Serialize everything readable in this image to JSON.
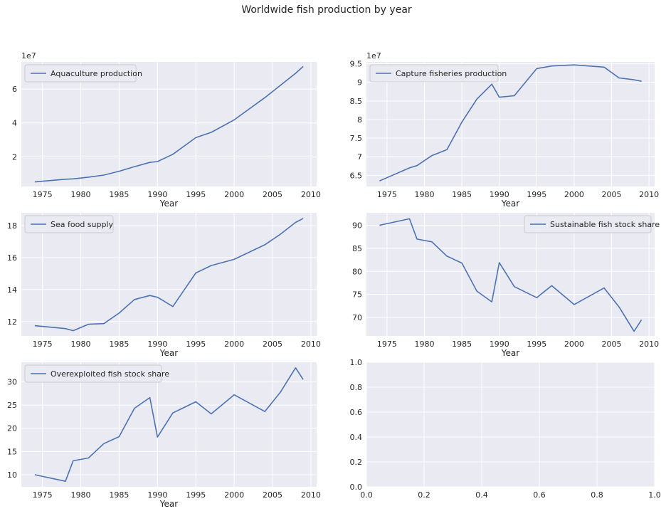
{
  "figure": {
    "suptitle": "Worldwide fish production by year"
  },
  "colors": {
    "axes_bg": "#eaeaf2",
    "grid": "#ffffff",
    "line": "#4c72b0",
    "text": "#262626",
    "legend_bg": "#eaeaf2",
    "legend_border": "#cccccc"
  },
  "chart_data": [
    {
      "type": "line",
      "xlabel": "Year",
      "ylabel": "",
      "offset_label": "1e7",
      "x_ticks": [
        1975,
        1980,
        1985,
        1990,
        1995,
        2000,
        2005,
        2010
      ],
      "y_ticks": [
        2,
        4,
        6
      ],
      "xlim": [
        1972.25,
        2010.75
      ],
      "ylim": [
        0.25,
        7.6
      ],
      "legend": "upper left",
      "grid": true,
      "series": [
        {
          "name": "Aquaculture production",
          "x": [
            1974,
            1978,
            1979,
            1981,
            1983,
            1985,
            1987,
            1989,
            1990,
            1992,
            1995,
            1997,
            2000,
            2004,
            2006,
            2008,
            2009
          ],
          "y": [
            0.52,
            0.68,
            0.7,
            0.8,
            0.92,
            1.15,
            1.42,
            1.67,
            1.72,
            2.15,
            3.13,
            3.44,
            4.18,
            5.49,
            6.21,
            6.93,
            7.33
          ]
        }
      ]
    },
    {
      "type": "line",
      "xlabel": "Year",
      "ylabel": "",
      "offset_label": "1e7",
      "x_ticks": [
        1975,
        1980,
        1985,
        1990,
        1995,
        2000,
        2005,
        2010
      ],
      "y_ticks": [
        6.5,
        7.0,
        7.5,
        8.0,
        8.5,
        9.0,
        9.5
      ],
      "xlim": [
        1972.25,
        2010.75
      ],
      "ylim": [
        6.2,
        9.55
      ],
      "legend": "upper left",
      "grid": true,
      "series": [
        {
          "name": "Capture fisheries production",
          "x": [
            1974,
            1978,
            1979,
            1981,
            1983,
            1985,
            1987,
            1989,
            1990,
            1992,
            1995,
            1997,
            2000,
            2004,
            2006,
            2008,
            2009
          ],
          "y": [
            6.35,
            6.7,
            6.76,
            7.03,
            7.19,
            7.93,
            8.55,
            8.95,
            8.6,
            8.64,
            9.37,
            9.44,
            9.47,
            9.41,
            9.12,
            9.07,
            9.03
          ]
        }
      ]
    },
    {
      "type": "line",
      "xlabel": "Year",
      "ylabel": "",
      "offset_label": "",
      "x_ticks": [
        1975,
        1980,
        1985,
        1990,
        1995,
        2000,
        2005,
        2010
      ],
      "y_ticks": [
        12,
        14,
        16,
        18
      ],
      "xlim": [
        1972.25,
        2010.75
      ],
      "ylim": [
        11.1,
        18.8
      ],
      "legend": "upper left",
      "grid": true,
      "series": [
        {
          "name": "Sea food supply",
          "x": [
            1974,
            1978,
            1979,
            1981,
            1983,
            1985,
            1987,
            1989,
            1990,
            1992,
            1995,
            1997,
            2000,
            2004,
            2006,
            2008,
            2009
          ],
          "y": [
            11.74,
            11.56,
            11.43,
            11.83,
            11.87,
            12.53,
            13.38,
            13.63,
            13.52,
            12.94,
            15.04,
            15.5,
            15.89,
            16.8,
            17.45,
            18.2,
            18.45
          ]
        }
      ]
    },
    {
      "type": "line",
      "xlabel": "Year",
      "ylabel": "",
      "offset_label": "",
      "x_ticks": [
        1975,
        1980,
        1985,
        1990,
        1995,
        2000,
        2005,
        2010
      ],
      "y_ticks": [
        70,
        75,
        80,
        85,
        90
      ],
      "xlim": [
        1972.25,
        2010.75
      ],
      "ylim": [
        66.0,
        92.7
      ],
      "legend": "upper right",
      "grid": true,
      "series": [
        {
          "name": "Sustainable fish stock share",
          "x": [
            1974,
            1978,
            1979,
            1981,
            1983,
            1985,
            1987,
            1989,
            1990,
            1992,
            1995,
            1997,
            2000,
            2004,
            2006,
            2008,
            2009
          ],
          "y": [
            90.0,
            91.4,
            87.0,
            86.4,
            83.3,
            81.8,
            75.7,
            73.4,
            81.9,
            76.7,
            74.3,
            76.9,
            72.8,
            76.4,
            72.3,
            67.0,
            69.5
          ]
        }
      ]
    },
    {
      "type": "line",
      "xlabel": "Year",
      "ylabel": "",
      "offset_label": "",
      "x_ticks": [
        1975,
        1980,
        1985,
        1990,
        1995,
        2000,
        2005,
        2010
      ],
      "y_ticks": [
        10,
        15,
        20,
        25,
        30
      ],
      "xlim": [
        1972.25,
        2010.75
      ],
      "ylim": [
        7.4,
        34.2
      ],
      "legend": "upper left",
      "grid": true,
      "series": [
        {
          "name": "Overexploited fish stock share",
          "x": [
            1974,
            1978,
            1979,
            1981,
            1983,
            1985,
            1987,
            1989,
            1990,
            1992,
            1995,
            1997,
            2000,
            2004,
            2006,
            2008,
            2009
          ],
          "y": [
            10.0,
            8.6,
            13.0,
            13.6,
            16.7,
            18.2,
            24.3,
            26.6,
            18.1,
            23.3,
            25.7,
            23.1,
            27.2,
            23.6,
            27.7,
            33.0,
            30.5
          ]
        }
      ]
    },
    {
      "type": "line",
      "xlabel": "",
      "ylabel": "",
      "offset_label": "",
      "x_ticks": [
        0.0,
        0.2,
        0.4,
        0.6,
        0.8,
        1.0
      ],
      "y_ticks": [
        0.0,
        0.2,
        0.4,
        0.6,
        0.8,
        1.0
      ],
      "tick_format": "1",
      "xlim": [
        0,
        1
      ],
      "ylim": [
        0,
        1
      ],
      "legend": "none",
      "grid": true,
      "series": []
    }
  ]
}
